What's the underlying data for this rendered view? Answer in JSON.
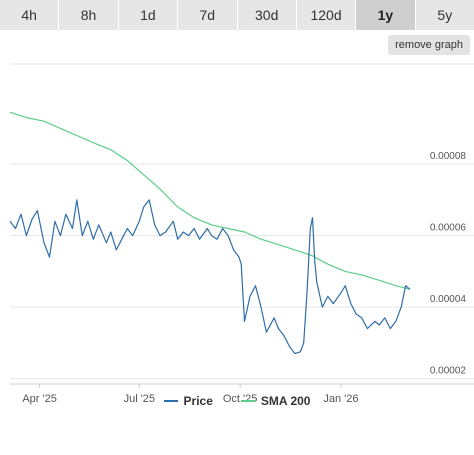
{
  "ranges": {
    "buttons": [
      "4h",
      "8h",
      "1d",
      "7d",
      "30d",
      "120d",
      "1y",
      "5y"
    ],
    "selected": "1y"
  },
  "remove_graph_label": "remove graph",
  "colors": {
    "price": "#2f6ea8",
    "sma": "#5ccc8a",
    "grid": "#e6e6e6",
    "active_tab": "#cfcfcf"
  },
  "chart_data": {
    "type": "line",
    "x_ticks": [
      "Apr '25",
      "Jul '25",
      "Oct '25",
      "Jan '26"
    ],
    "y_ticks": [
      "0.00002",
      "0.00004",
      "0.00006",
      "0.00008"
    ],
    "ylim": [
      1.85e-05,
      0.000108
    ],
    "xlim": [
      "2025-03-05",
      "2026-03-05"
    ],
    "grid": true,
    "legend_position": "bottom-center",
    "series": [
      {
        "name": "Price",
        "x": [
          "2025-03-05",
          "2025-03-10",
          "2025-03-15",
          "2025-03-20",
          "2025-03-25",
          "2025-03-30",
          "2025-04-05",
          "2025-04-10",
          "2025-04-15",
          "2025-04-20",
          "2025-04-25",
          "2025-05-01",
          "2025-05-05",
          "2025-05-10",
          "2025-05-15",
          "2025-05-20",
          "2025-05-25",
          "2025-06-01",
          "2025-06-05",
          "2025-06-10",
          "2025-06-15",
          "2025-06-20",
          "2025-06-25",
          "2025-07-01",
          "2025-07-05",
          "2025-07-10",
          "2025-07-15",
          "2025-07-20",
          "2025-07-25",
          "2025-08-01",
          "2025-08-05",
          "2025-08-10",
          "2025-08-15",
          "2025-08-20",
          "2025-08-25",
          "2025-09-01",
          "2025-09-05",
          "2025-09-10",
          "2025-09-15",
          "2025-09-20",
          "2025-09-25",
          "2025-09-30",
          "2025-10-02",
          "2025-10-05",
          "2025-10-10",
          "2025-10-15",
          "2025-10-20",
          "2025-10-25",
          "2025-11-01",
          "2025-11-05",
          "2025-11-10",
          "2025-11-15",
          "2025-11-20",
          "2025-11-25",
          "2025-11-28",
          "2025-12-01",
          "2025-12-04",
          "2025-12-06",
          "2025-12-08",
          "2025-12-10",
          "2025-12-15",
          "2025-12-20",
          "2025-12-25",
          "2026-01-01",
          "2026-01-05",
          "2026-01-10",
          "2026-01-15",
          "2026-01-20",
          "2026-01-25",
          "2026-02-01",
          "2026-02-05",
          "2026-02-10",
          "2026-02-15",
          "2026-02-20",
          "2026-02-25",
          "2026-03-01",
          "2026-03-05"
        ],
        "values": [
          6.4e-05,
          6.2e-05,
          6.6e-05,
          6e-05,
          6.45e-05,
          6.7e-05,
          5.8e-05,
          5.4e-05,
          6.4e-05,
          6e-05,
          6.6e-05,
          6.2e-05,
          7e-05,
          6e-05,
          6.4e-05,
          5.9e-05,
          6.3e-05,
          5.8e-05,
          6.1e-05,
          5.6e-05,
          5.9e-05,
          6.2e-05,
          6e-05,
          6.4e-05,
          6.8e-05,
          7e-05,
          6.3e-05,
          6e-05,
          6.1e-05,
          6.4e-05,
          5.9e-05,
          6.1e-05,
          6e-05,
          6.2e-05,
          5.9e-05,
          6.2e-05,
          6e-05,
          5.9e-05,
          6.2e-05,
          6e-05,
          5.6e-05,
          5.4e-05,
          5.2e-05,
          3.6e-05,
          4.3e-05,
          4.6e-05,
          4e-05,
          3.3e-05,
          3.7e-05,
          3.4e-05,
          3.2e-05,
          2.9e-05,
          2.7e-05,
          2.75e-05,
          3e-05,
          4.4e-05,
          6.2e-05,
          6.5e-05,
          5.3e-05,
          4.7e-05,
          4e-05,
          4.3e-05,
          4.1e-05,
          4.4e-05,
          4.6e-05,
          4.1e-05,
          3.8e-05,
          3.7e-05,
          3.4e-05,
          3.6e-05,
          3.5e-05,
          3.7e-05,
          3.4e-05,
          3.6e-05,
          4e-05,
          4.6e-05,
          4.5e-05
        ]
      },
      {
        "name": "SMA 200",
        "x": [
          "2025-03-05",
          "2025-03-20",
          "2025-04-05",
          "2025-04-20",
          "2025-05-05",
          "2025-05-20",
          "2025-06-05",
          "2025-06-20",
          "2025-07-05",
          "2025-07-20",
          "2025-08-05",
          "2025-08-20",
          "2025-09-05",
          "2025-09-20",
          "2025-10-05",
          "2025-10-20",
          "2025-11-05",
          "2025-11-20",
          "2025-12-05",
          "2025-12-20",
          "2026-01-05",
          "2026-01-20",
          "2026-02-05",
          "2026-02-20",
          "2026-03-05"
        ],
        "values": [
          9.45e-05,
          9.3e-05,
          9.2e-05,
          9e-05,
          8.8e-05,
          8.6e-05,
          8.4e-05,
          8.1e-05,
          7.7e-05,
          7.3e-05,
          6.8e-05,
          6.5e-05,
          6.3e-05,
          6.2e-05,
          6.1e-05,
          5.9e-05,
          5.75e-05,
          5.6e-05,
          5.45e-05,
          5.2e-05,
          5e-05,
          4.9e-05,
          4.75e-05,
          4.6e-05,
          4.5e-05
        ]
      }
    ]
  }
}
